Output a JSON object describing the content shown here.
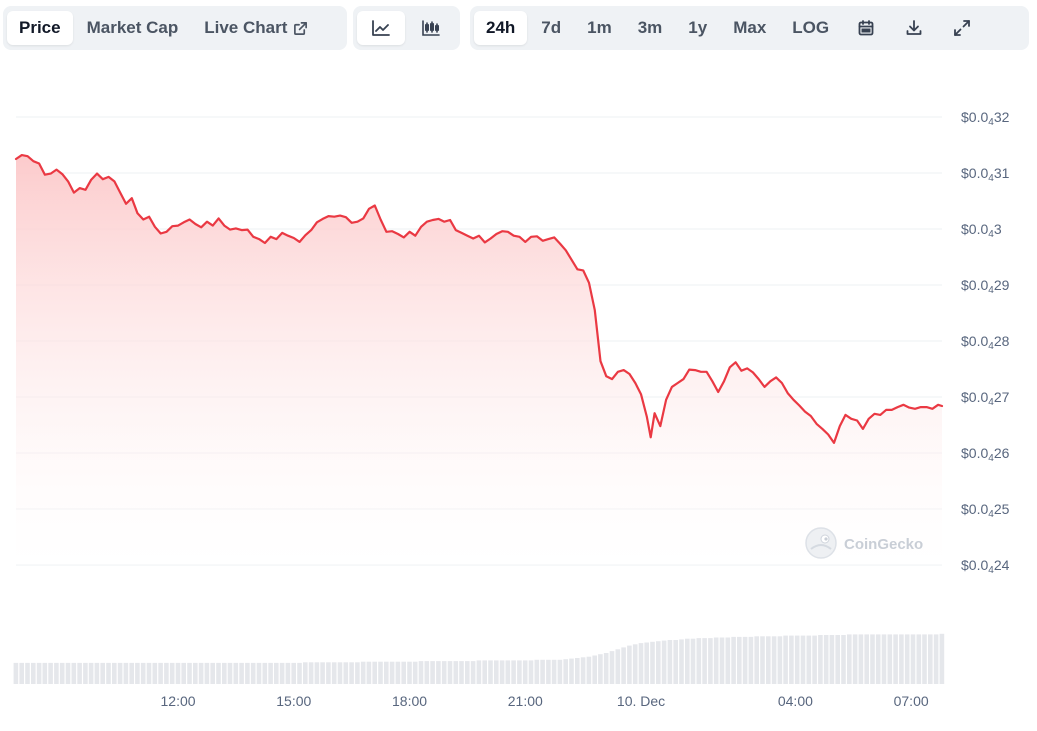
{
  "toolbar": {
    "view_tabs": [
      {
        "label": "Price",
        "active": true
      },
      {
        "label": "Market Cap",
        "active": false
      },
      {
        "label": "Live Chart",
        "active": false,
        "icon": "external-link-icon"
      }
    ],
    "chart_type_buttons": [
      {
        "icon": "line-chart-icon",
        "active": true
      },
      {
        "icon": "candlestick-chart-icon",
        "active": false
      }
    ],
    "range_buttons": [
      {
        "label": "24h",
        "active": true
      },
      {
        "label": "7d",
        "active": false
      },
      {
        "label": "1m",
        "active": false
      },
      {
        "label": "3m",
        "active": false
      },
      {
        "label": "1y",
        "active": false
      },
      {
        "label": "Max",
        "active": false
      },
      {
        "label": "LOG",
        "active": false
      }
    ],
    "action_icons": [
      "calendar-icon",
      "download-icon",
      "expand-icon"
    ]
  },
  "watermark": {
    "text": "CoinGecko",
    "icon": "gecko-logo-icon"
  },
  "colors": {
    "line": "#ea3943",
    "area_top": "#fcc8c9",
    "grid": "#eef0f3",
    "volume": "#e5e7eb",
    "tick_text": "#58667e",
    "active_bg": "#ffffff",
    "toolbar_bg": "#eff2f5"
  },
  "chart_data": {
    "type": "area",
    "grid": true,
    "y_ticks": [
      {
        "prefix": "$0.0",
        "sub": "4",
        "rest": "32",
        "value": 3.2e-05
      },
      {
        "prefix": "$0.0",
        "sub": "4",
        "rest": "31",
        "value": 3.1e-05
      },
      {
        "prefix": "$0.0",
        "sub": "4",
        "rest": "3",
        "value": 3e-05
      },
      {
        "prefix": "$0.0",
        "sub": "4",
        "rest": "29",
        "value": 2.9e-05
      },
      {
        "prefix": "$0.0",
        "sub": "4",
        "rest": "28",
        "value": 2.8e-05
      },
      {
        "prefix": "$0.0",
        "sub": "4",
        "rest": "27",
        "value": 2.7e-05
      },
      {
        "prefix": "$0.0",
        "sub": "4",
        "rest": "26",
        "value": 2.6e-05
      },
      {
        "prefix": "$0.0",
        "sub": "4",
        "rest": "25",
        "value": 2.5e-05
      },
      {
        "prefix": "$0.0",
        "sub": "4",
        "rest": "24",
        "value": 2.4e-05
      }
    ],
    "ylim": [
      2.4e-05,
      3.2e-05
    ],
    "x_ticks": [
      {
        "label": "12:00",
        "hour": 3.0
      },
      {
        "label": "15:00",
        "hour": 6.0
      },
      {
        "label": "18:00",
        "hour": 9.0
      },
      {
        "label": "21:00",
        "hour": 12.0
      },
      {
        "label": "10. Dec",
        "hour": 15.0
      },
      {
        "label": "04:00",
        "hour": 19.0
      },
      {
        "label": "07:00",
        "hour": 22.0
      }
    ],
    "xlim_hours": [
      -1.2,
      22.8
    ],
    "series": [
      {
        "type": "line",
        "points": [
          [
            -1.2,
            3.125e-05
          ],
          [
            -1.05,
            3.132e-05
          ],
          [
            -0.9,
            3.13e-05
          ],
          [
            -0.75,
            3.121e-05
          ],
          [
            -0.6,
            3.117e-05
          ],
          [
            -0.45,
            3.097e-05
          ],
          [
            -0.3,
            3.099e-05
          ],
          [
            -0.15,
            3.106e-05
          ],
          [
            0.0,
            3.098e-05
          ],
          [
            0.15,
            3.085e-05
          ],
          [
            0.3,
            3.065e-05
          ],
          [
            0.45,
            3.073e-05
          ],
          [
            0.6,
            3.07e-05
          ],
          [
            0.75,
            3.088e-05
          ],
          [
            0.9,
            3.099e-05
          ],
          [
            1.05,
            3.089e-05
          ],
          [
            1.2,
            3.093e-05
          ],
          [
            1.35,
            3.085e-05
          ],
          [
            1.5,
            3.065e-05
          ],
          [
            1.65,
            3.045e-05
          ],
          [
            1.8,
            3.055e-05
          ],
          [
            1.95,
            3.028e-05
          ],
          [
            2.1,
            3.017e-05
          ],
          [
            2.25,
            3.022e-05
          ],
          [
            2.4,
            3.004e-05
          ],
          [
            2.55,
            2.992e-05
          ],
          [
            2.7,
            2.995e-05
          ],
          [
            2.85,
            3.005e-05
          ],
          [
            3.0,
            3.006e-05
          ],
          [
            3.15,
            3.012e-05
          ],
          [
            3.3,
            3.017e-05
          ],
          [
            3.45,
            3.009e-05
          ],
          [
            3.6,
            3.003e-05
          ],
          [
            3.75,
            3.013e-05
          ],
          [
            3.9,
            3.006e-05
          ],
          [
            4.05,
            3.019e-05
          ],
          [
            4.2,
            3.006e-05
          ],
          [
            4.35,
            2.999e-05
          ],
          [
            4.5,
            3.001e-05
          ],
          [
            4.65,
            2.998e-05
          ],
          [
            4.8,
            2.999e-05
          ],
          [
            4.95,
            2.986e-05
          ],
          [
            5.1,
            2.982e-05
          ],
          [
            5.25,
            2.975e-05
          ],
          [
            5.4,
            2.986e-05
          ],
          [
            5.55,
            2.982e-05
          ],
          [
            5.7,
            2.993e-05
          ],
          [
            5.85,
            2.988e-05
          ],
          [
            6.0,
            2.984e-05
          ],
          [
            6.15,
            2.977e-05
          ],
          [
            6.3,
            2.989e-05
          ],
          [
            6.45,
            2.998e-05
          ],
          [
            6.6,
            3.012e-05
          ],
          [
            6.75,
            3.018e-05
          ],
          [
            6.9,
            3.023e-05
          ],
          [
            7.05,
            3.022e-05
          ],
          [
            7.2,
            3.024e-05
          ],
          [
            7.35,
            3.021e-05
          ],
          [
            7.5,
            3.011e-05
          ],
          [
            7.65,
            3.013e-05
          ],
          [
            7.8,
            3.019e-05
          ],
          [
            7.95,
            3.036e-05
          ],
          [
            8.1,
            3.042e-05
          ],
          [
            8.25,
            3.017e-05
          ],
          [
            8.4,
            2.995e-05
          ],
          [
            8.55,
            2.996e-05
          ],
          [
            8.7,
            2.991e-05
          ],
          [
            8.85,
            2.985e-05
          ],
          [
            9.0,
            2.995e-05
          ],
          [
            9.15,
            2.988e-05
          ],
          [
            9.3,
            3.004e-05
          ],
          [
            9.45,
            3.013e-05
          ],
          [
            9.6,
            3.016e-05
          ],
          [
            9.75,
            3.018e-05
          ],
          [
            9.9,
            3.013e-05
          ],
          [
            10.05,
            3.016e-05
          ],
          [
            10.2,
            2.998e-05
          ],
          [
            10.35,
            2.993e-05
          ],
          [
            10.5,
            2.988e-05
          ],
          [
            10.65,
            2.983e-05
          ],
          [
            10.8,
            2.988e-05
          ],
          [
            10.95,
            2.976e-05
          ],
          [
            11.1,
            2.983e-05
          ],
          [
            11.25,
            2.991e-05
          ],
          [
            11.4,
            2.996e-05
          ],
          [
            11.55,
            2.995e-05
          ],
          [
            11.7,
            2.988e-05
          ],
          [
            11.85,
            2.986e-05
          ],
          [
            12.0,
            2.977e-05
          ],
          [
            12.15,
            2.986e-05
          ],
          [
            12.3,
            2.987e-05
          ],
          [
            12.45,
            2.979e-05
          ],
          [
            12.6,
            2.982e-05
          ],
          [
            12.75,
            2.985e-05
          ],
          [
            12.9,
            2.974e-05
          ],
          [
            13.05,
            2.962e-05
          ],
          [
            13.2,
            2.945e-05
          ],
          [
            13.35,
            2.928e-05
          ],
          [
            13.5,
            2.926e-05
          ],
          [
            13.65,
            2.904e-05
          ],
          [
            13.8,
            2.855e-05
          ],
          [
            13.95,
            2.764e-05
          ],
          [
            14.1,
            2.737e-05
          ],
          [
            14.25,
            2.732e-05
          ],
          [
            14.4,
            2.745e-05
          ],
          [
            14.55,
            2.748e-05
          ],
          [
            14.7,
            2.741e-05
          ],
          [
            14.85,
            2.725e-05
          ],
          [
            15.0,
            2.705e-05
          ],
          [
            15.15,
            2.665e-05
          ],
          [
            15.25,
            2.628e-05
          ],
          [
            15.35,
            2.671e-05
          ],
          [
            15.5,
            2.648e-05
          ],
          [
            15.65,
            2.695e-05
          ],
          [
            15.8,
            2.718e-05
          ],
          [
            15.95,
            2.725e-05
          ],
          [
            16.1,
            2.732e-05
          ],
          [
            16.25,
            2.749e-05
          ],
          [
            16.4,
            2.748e-05
          ],
          [
            16.55,
            2.745e-05
          ],
          [
            16.7,
            2.745e-05
          ],
          [
            16.85,
            2.728e-05
          ],
          [
            17.0,
            2.709e-05
          ],
          [
            17.15,
            2.728e-05
          ],
          [
            17.3,
            2.753e-05
          ],
          [
            17.45,
            2.762e-05
          ],
          [
            17.6,
            2.747e-05
          ],
          [
            17.75,
            2.751e-05
          ],
          [
            17.9,
            2.744e-05
          ],
          [
            18.05,
            2.732e-05
          ],
          [
            18.2,
            2.718e-05
          ],
          [
            18.35,
            2.728e-05
          ],
          [
            18.5,
            2.735e-05
          ],
          [
            18.65,
            2.725e-05
          ],
          [
            18.8,
            2.707e-05
          ],
          [
            18.95,
            2.695e-05
          ],
          [
            19.1,
            2.685e-05
          ],
          [
            19.25,
            2.674e-05
          ],
          [
            19.4,
            2.666e-05
          ],
          [
            19.55,
            2.652e-05
          ],
          [
            19.7,
            2.643e-05
          ],
          [
            19.85,
            2.633e-05
          ],
          [
            20.0,
            2.618e-05
          ],
          [
            20.15,
            2.648e-05
          ],
          [
            20.3,
            2.668e-05
          ],
          [
            20.45,
            2.661e-05
          ],
          [
            20.6,
            2.658e-05
          ],
          [
            20.75,
            2.643e-05
          ],
          [
            20.9,
            2.661e-05
          ],
          [
            21.05,
            2.67e-05
          ],
          [
            21.2,
            2.668e-05
          ],
          [
            21.35,
            2.677e-05
          ],
          [
            21.5,
            2.677e-05
          ],
          [
            21.65,
            2.682e-05
          ],
          [
            21.8,
            2.686e-05
          ],
          [
            21.95,
            2.681e-05
          ],
          [
            22.1,
            2.679e-05
          ],
          [
            22.25,
            2.682e-05
          ],
          [
            22.4,
            2.682e-05
          ],
          [
            22.55,
            2.679e-05
          ],
          [
            22.7,
            2.686e-05
          ],
          [
            22.8,
            2.684e-05
          ]
        ]
      },
      {
        "type": "volume_bars",
        "scale": "unlabeled",
        "start_hour": -1.2,
        "step_hours": 0.15,
        "values": [
          34,
          34,
          34,
          34,
          34,
          34,
          34,
          34,
          34,
          34,
          34,
          34,
          34,
          34,
          34,
          34,
          34,
          34,
          34,
          34,
          34,
          34,
          34,
          34,
          34,
          34,
          34,
          34,
          34,
          34,
          34,
          34,
          34,
          34,
          34,
          34,
          34,
          34,
          34,
          34,
          34,
          34,
          34,
          34,
          34,
          34,
          34,
          34,
          34,
          34,
          35,
          35,
          35,
          35,
          35,
          35,
          35,
          35,
          35,
          35,
          36,
          36,
          36,
          36,
          36,
          36,
          36,
          36,
          36,
          36,
          37,
          37,
          37,
          37,
          37,
          37,
          37,
          37,
          37,
          37,
          38,
          38,
          38,
          38,
          38,
          38,
          38,
          38,
          38,
          38,
          39,
          39,
          39,
          39,
          39,
          40,
          41,
          42,
          43,
          44,
          46,
          48,
          50,
          53,
          56,
          59,
          62,
          64,
          66,
          67,
          68,
          69,
          70,
          71,
          71,
          72,
          73,
          73,
          74,
          74,
          74,
          75,
          75,
          75,
          76,
          76,
          76,
          76,
          77,
          77,
          77,
          77,
          77,
          78,
          78,
          78,
          78,
          78,
          78,
          79,
          79,
          79,
          79,
          79,
          80,
          80,
          80,
          80,
          80,
          80,
          80,
          80,
          80,
          80,
          80,
          80,
          80,
          80,
          80,
          80,
          81
        ]
      }
    ]
  }
}
